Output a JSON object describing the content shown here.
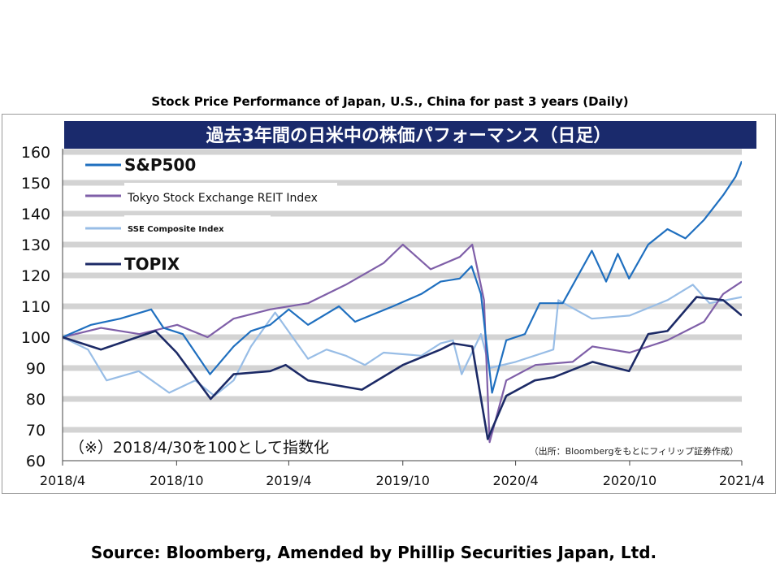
{
  "caption": "Stock Price Performance of Japan, U.S., China for past 3 years (Daily)",
  "source": "Source: Bloomberg, Amended by Phillip Securities Japan, Ltd.",
  "chart_data": {
    "type": "line",
    "title": "過去3年間の日米中の株価パフォーマンス（日足）",
    "note": "（※）2018/4/30を100として指数化",
    "attribution": "（出所：Bloombergをもとにフィリップ証券作成）",
    "ylim": [
      60,
      160
    ],
    "yticks": [
      60,
      70,
      80,
      90,
      100,
      110,
      120,
      130,
      140,
      150,
      160
    ],
    "xlim": [
      "2018-04-30",
      "2021-04-30"
    ],
    "xticks": [
      {
        "label": "2018/4",
        "date": "2018-04-30"
      },
      {
        "label": "2018/10",
        "date": "2018-10-31"
      },
      {
        "label": "2019/4",
        "date": "2019-04-30"
      },
      {
        "label": "2019/10",
        "date": "2019-10-31"
      },
      {
        "label": "2020/4",
        "date": "2020-04-30"
      },
      {
        "label": "2020/10",
        "date": "2020-10-31"
      },
      {
        "label": "2021/4",
        "date": "2021-04-30"
      }
    ],
    "grid": "horizontal",
    "legend": "top-left",
    "series": [
      {
        "name": "S&P500",
        "color": "#1f6fbf",
        "points": [
          [
            "2018-04-30",
            100
          ],
          [
            "2018-06-15",
            104
          ],
          [
            "2018-08-01",
            106
          ],
          [
            "2018-09-20",
            109
          ],
          [
            "2018-10-10",
            103
          ],
          [
            "2018-11-10",
            101
          ],
          [
            "2018-12-24",
            88
          ],
          [
            "2019-01-31",
            97
          ],
          [
            "2019-02-28",
            102
          ],
          [
            "2019-03-31",
            104
          ],
          [
            "2019-04-30",
            109
          ],
          [
            "2019-05-31",
            104
          ],
          [
            "2019-07-20",
            110
          ],
          [
            "2019-08-15",
            105
          ],
          [
            "2019-10-15",
            110
          ],
          [
            "2019-11-30",
            114
          ],
          [
            "2019-12-31",
            118
          ],
          [
            "2020-01-31",
            119
          ],
          [
            "2020-02-19",
            123
          ],
          [
            "2020-03-05",
            114
          ],
          [
            "2020-03-23",
            82
          ],
          [
            "2020-04-15",
            99
          ],
          [
            "2020-05-15",
            101
          ],
          [
            "2020-06-08",
            111
          ],
          [
            "2020-07-15",
            111
          ],
          [
            "2020-08-31",
            128
          ],
          [
            "2020-09-23",
            118
          ],
          [
            "2020-10-12",
            127
          ],
          [
            "2020-10-30",
            119
          ],
          [
            "2020-11-30",
            130
          ],
          [
            "2020-12-31",
            135
          ],
          [
            "2021-01-29",
            132
          ],
          [
            "2021-02-28",
            138
          ],
          [
            "2021-03-31",
            146
          ],
          [
            "2021-04-20",
            152
          ],
          [
            "2021-04-30",
            157
          ]
        ]
      },
      {
        "name": "Tokyo Stock Exchange REIT Index",
        "color": "#7f5fa8",
        "points": [
          [
            "2018-04-30",
            100
          ],
          [
            "2018-07-01",
            103
          ],
          [
            "2018-09-01",
            101
          ],
          [
            "2018-11-01",
            104
          ],
          [
            "2018-12-20",
            100
          ],
          [
            "2019-01-31",
            106
          ],
          [
            "2019-03-31",
            109
          ],
          [
            "2019-05-31",
            111
          ],
          [
            "2019-07-31",
            117
          ],
          [
            "2019-09-30",
            124
          ],
          [
            "2019-10-31",
            130
          ],
          [
            "2019-12-15",
            122
          ],
          [
            "2020-01-31",
            126
          ],
          [
            "2020-02-20",
            130
          ],
          [
            "2020-03-10",
            112
          ],
          [
            "2020-03-19",
            66
          ],
          [
            "2020-04-15",
            86
          ],
          [
            "2020-06-01",
            91
          ],
          [
            "2020-07-31",
            92
          ],
          [
            "2020-09-01",
            97
          ],
          [
            "2020-10-31",
            95
          ],
          [
            "2020-12-31",
            99
          ],
          [
            "2021-02-28",
            105
          ],
          [
            "2021-03-31",
            114
          ],
          [
            "2021-04-30",
            118
          ]
        ]
      },
      {
        "name": "SSE Composite Index",
        "color": "#98bde6",
        "points": [
          [
            "2018-04-30",
            100
          ],
          [
            "2018-06-10",
            96
          ],
          [
            "2018-07-10",
            86
          ],
          [
            "2018-08-31",
            89
          ],
          [
            "2018-10-19",
            82
          ],
          [
            "2018-11-30",
            86
          ],
          [
            "2018-12-31",
            81
          ],
          [
            "2019-01-31",
            86
          ],
          [
            "2019-02-28",
            97
          ],
          [
            "2019-04-08",
            108
          ],
          [
            "2019-05-31",
            93
          ],
          [
            "2019-06-30",
            96
          ],
          [
            "2019-07-31",
            94
          ],
          [
            "2019-08-31",
            91
          ],
          [
            "2019-09-30",
            95
          ],
          [
            "2019-11-30",
            94
          ],
          [
            "2019-12-31",
            98
          ],
          [
            "2020-01-20",
            99
          ],
          [
            "2020-02-03",
            88
          ],
          [
            "2020-03-05",
            101
          ],
          [
            "2020-03-19",
            90
          ],
          [
            "2020-04-30",
            92
          ],
          [
            "2020-06-30",
            96
          ],
          [
            "2020-07-08",
            112
          ],
          [
            "2020-08-31",
            106
          ],
          [
            "2020-10-31",
            107
          ],
          [
            "2020-12-31",
            112
          ],
          [
            "2021-02-10",
            117
          ],
          [
            "2021-03-09",
            111
          ],
          [
            "2021-04-30",
            113
          ]
        ]
      },
      {
        "name": "TOPIX",
        "color": "#1c2a66",
        "points": [
          [
            "2018-04-30",
            100
          ],
          [
            "2018-07-01",
            96
          ],
          [
            "2018-09-27",
            102
          ],
          [
            "2018-10-31",
            95
          ],
          [
            "2018-12-25",
            80
          ],
          [
            "2019-01-31",
            88
          ],
          [
            "2019-03-31",
            89
          ],
          [
            "2019-04-25",
            91
          ],
          [
            "2019-05-31",
            86
          ],
          [
            "2019-08-26",
            83
          ],
          [
            "2019-10-31",
            91
          ],
          [
            "2019-12-31",
            96
          ],
          [
            "2020-01-20",
            98
          ],
          [
            "2020-02-20",
            97
          ],
          [
            "2020-03-16",
            67
          ],
          [
            "2020-04-15",
            81
          ],
          [
            "2020-05-31",
            86
          ],
          [
            "2020-06-30",
            87
          ],
          [
            "2020-09-01",
            92
          ],
          [
            "2020-10-30",
            89
          ],
          [
            "2020-11-30",
            101
          ],
          [
            "2020-12-31",
            102
          ],
          [
            "2021-02-16",
            113
          ],
          [
            "2021-03-31",
            112
          ],
          [
            "2021-04-30",
            107
          ]
        ]
      }
    ]
  }
}
